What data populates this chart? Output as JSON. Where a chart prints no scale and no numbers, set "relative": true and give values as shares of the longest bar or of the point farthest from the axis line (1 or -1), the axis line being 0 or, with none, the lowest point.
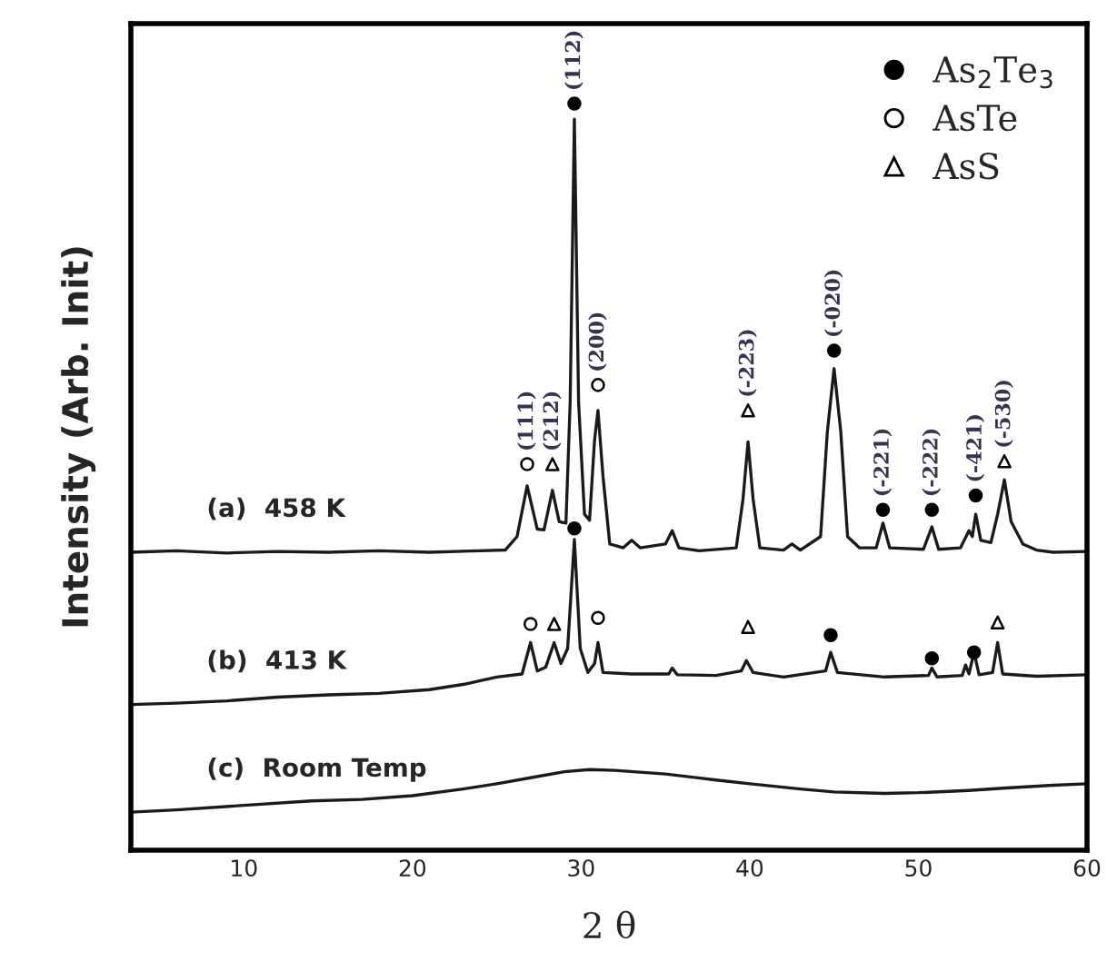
{
  "chart_data": {
    "type": "line",
    "xlabel": "2 θ",
    "ylabel": "Intensity (Arb. Init)",
    "relative": true,
    "xlim": [
      3.3,
      60
    ],
    "xticks": [
      10,
      20,
      30,
      40,
      50,
      60
    ],
    "tick_labels": "x",
    "legend": "top right",
    "series": [
      {
        "name": "(a)  458 K",
        "color": "#1a1a1a",
        "x": [
          3.3,
          6,
          9,
          12,
          15,
          18,
          21,
          24,
          25.5,
          26.2,
          26.8,
          27.4,
          27.8,
          28.3,
          28.7,
          29.1,
          29.35,
          29.6,
          29.85,
          30.2,
          30.5,
          30.8,
          31.0,
          31.3,
          31.7,
          32.5,
          33.0,
          33.5,
          35.0,
          35.4,
          35.8,
          37,
          39.2,
          39.6,
          39.9,
          40.2,
          40.6,
          42,
          42.5,
          43,
          44.2,
          44.6,
          45.0,
          45.4,
          45.8,
          46.5,
          47.5,
          47.9,
          48.3,
          50.3,
          50.8,
          51.2,
          52.5,
          53.0,
          53.2,
          53.4,
          53.7,
          54.3,
          54.7,
          55.1,
          55.5,
          56.2,
          57,
          58,
          60
        ],
        "values": [
          0.399,
          0.401,
          0.398,
          0.4,
          0.399,
          0.401,
          0.399,
          0.401,
          0.402,
          0.42,
          0.488,
          0.43,
          0.429,
          0.482,
          0.44,
          0.438,
          0.6,
          0.979,
          0.6,
          0.45,
          0.442,
          0.55,
          0.589,
          0.5,
          0.41,
          0.405,
          0.415,
          0.405,
          0.41,
          0.428,
          0.405,
          0.401,
          0.405,
          0.47,
          0.547,
          0.47,
          0.405,
          0.402,
          0.41,
          0.402,
          0.42,
          0.56,
          0.645,
          0.56,
          0.42,
          0.405,
          0.405,
          0.438,
          0.405,
          0.403,
          0.433,
          0.403,
          0.405,
          0.428,
          0.42,
          0.45,
          0.415,
          0.412,
          0.45,
          0.496,
          0.44,
          0.41,
          0.402,
          0.399,
          0.4
        ]
      },
      {
        "name": "(b)  413 K",
        "color": "#1a1a1a",
        "x": [
          3.3,
          6,
          9,
          12,
          15,
          18,
          21,
          23,
          25,
          26.5,
          27.0,
          27.4,
          27.9,
          28.4,
          28.8,
          29.2,
          29.6,
          29.95,
          30.4,
          30.8,
          31.0,
          31.3,
          33,
          35.2,
          35.4,
          35.7,
          38,
          39.5,
          39.8,
          40.2,
          42,
          44.5,
          44.8,
          45.2,
          48,
          50.6,
          50.8,
          51.1,
          52.6,
          52.8,
          53.0,
          53.3,
          53.6,
          54.4,
          54.7,
          55.0,
          57,
          60
        ],
        "values": [
          0.195,
          0.197,
          0.2,
          0.205,
          0.208,
          0.21,
          0.215,
          0.222,
          0.232,
          0.236,
          0.278,
          0.24,
          0.245,
          0.278,
          0.25,
          0.27,
          0.416,
          0.27,
          0.238,
          0.25,
          0.278,
          0.238,
          0.236,
          0.236,
          0.244,
          0.235,
          0.234,
          0.24,
          0.254,
          0.238,
          0.232,
          0.24,
          0.265,
          0.238,
          0.232,
          0.234,
          0.244,
          0.232,
          0.234,
          0.248,
          0.236,
          0.265,
          0.235,
          0.238,
          0.278,
          0.236,
          0.233,
          0.235
        ]
      },
      {
        "name": "(c)  Room Temp",
        "color": "#1a1a1a",
        "x": [
          3.3,
          6,
          10,
          14,
          17,
          20,
          23,
          25,
          27,
          29,
          30.5,
          32,
          35,
          38,
          40,
          43,
          45,
          48,
          50,
          53,
          55,
          58,
          60
        ],
        "values": [
          0.051,
          0.054,
          0.06,
          0.066,
          0.068,
          0.073,
          0.082,
          0.089,
          0.097,
          0.105,
          0.108,
          0.107,
          0.102,
          0.094,
          0.089,
          0.082,
          0.078,
          0.076,
          0.077,
          0.08,
          0.083,
          0.087,
          0.089
        ]
      },
      {
        "name": "As$_{2}$Te$_{3}$",
        "type": "scatter",
        "marker": "circle",
        "color": "#000000",
        "x": [
          29.6,
          45.0,
          47.9,
          50.8,
          53.4,
          29.6,
          44.8,
          50.8,
          53.3
        ],
        "values": [
          1.0,
          0.669,
          0.456,
          0.456,
          0.475,
          0.431,
          0.288,
          0.257,
          0.265
        ]
      },
      {
        "name": "AsTe",
        "type": "scatter",
        "marker": "circle",
        "color": "#ffffff",
        "x": [
          26.8,
          31.0,
          27.0,
          31.0
        ],
        "values": [
          0.517,
          0.623,
          0.303,
          0.311
        ]
      },
      {
        "name": "AsS",
        "type": "scatter",
        "marker": "triangle",
        "color": "#ffffff",
        "x": [
          28.3,
          39.9,
          55.1,
          28.4,
          39.9,
          54.7
        ],
        "values": [
          0.517,
          0.589,
          0.521,
          0.303,
          0.299,
          0.305
        ]
      }
    ],
    "annotations": [
      {
        "text": "(111)",
        "x": 26.8,
        "y": 0.517
      },
      {
        "text": "(212)",
        "x": 28.3,
        "y": 0.517
      },
      {
        "text": "(112)",
        "x": 29.6,
        "y": 1.0
      },
      {
        "text": "(200)",
        "x": 31.0,
        "y": 0.623
      },
      {
        "text": "(-223)",
        "x": 39.9,
        "y": 0.589
      },
      {
        "text": "(-020)",
        "x": 45.0,
        "y": 0.669
      },
      {
        "text": "(-221)",
        "x": 47.9,
        "y": 0.456
      },
      {
        "text": "(-222)",
        "x": 50.8,
        "y": 0.456
      },
      {
        "text": "(-421)",
        "x": 53.4,
        "y": 0.475
      },
      {
        "text": "(-530)",
        "x": 55.1,
        "y": 0.521
      }
    ]
  }
}
